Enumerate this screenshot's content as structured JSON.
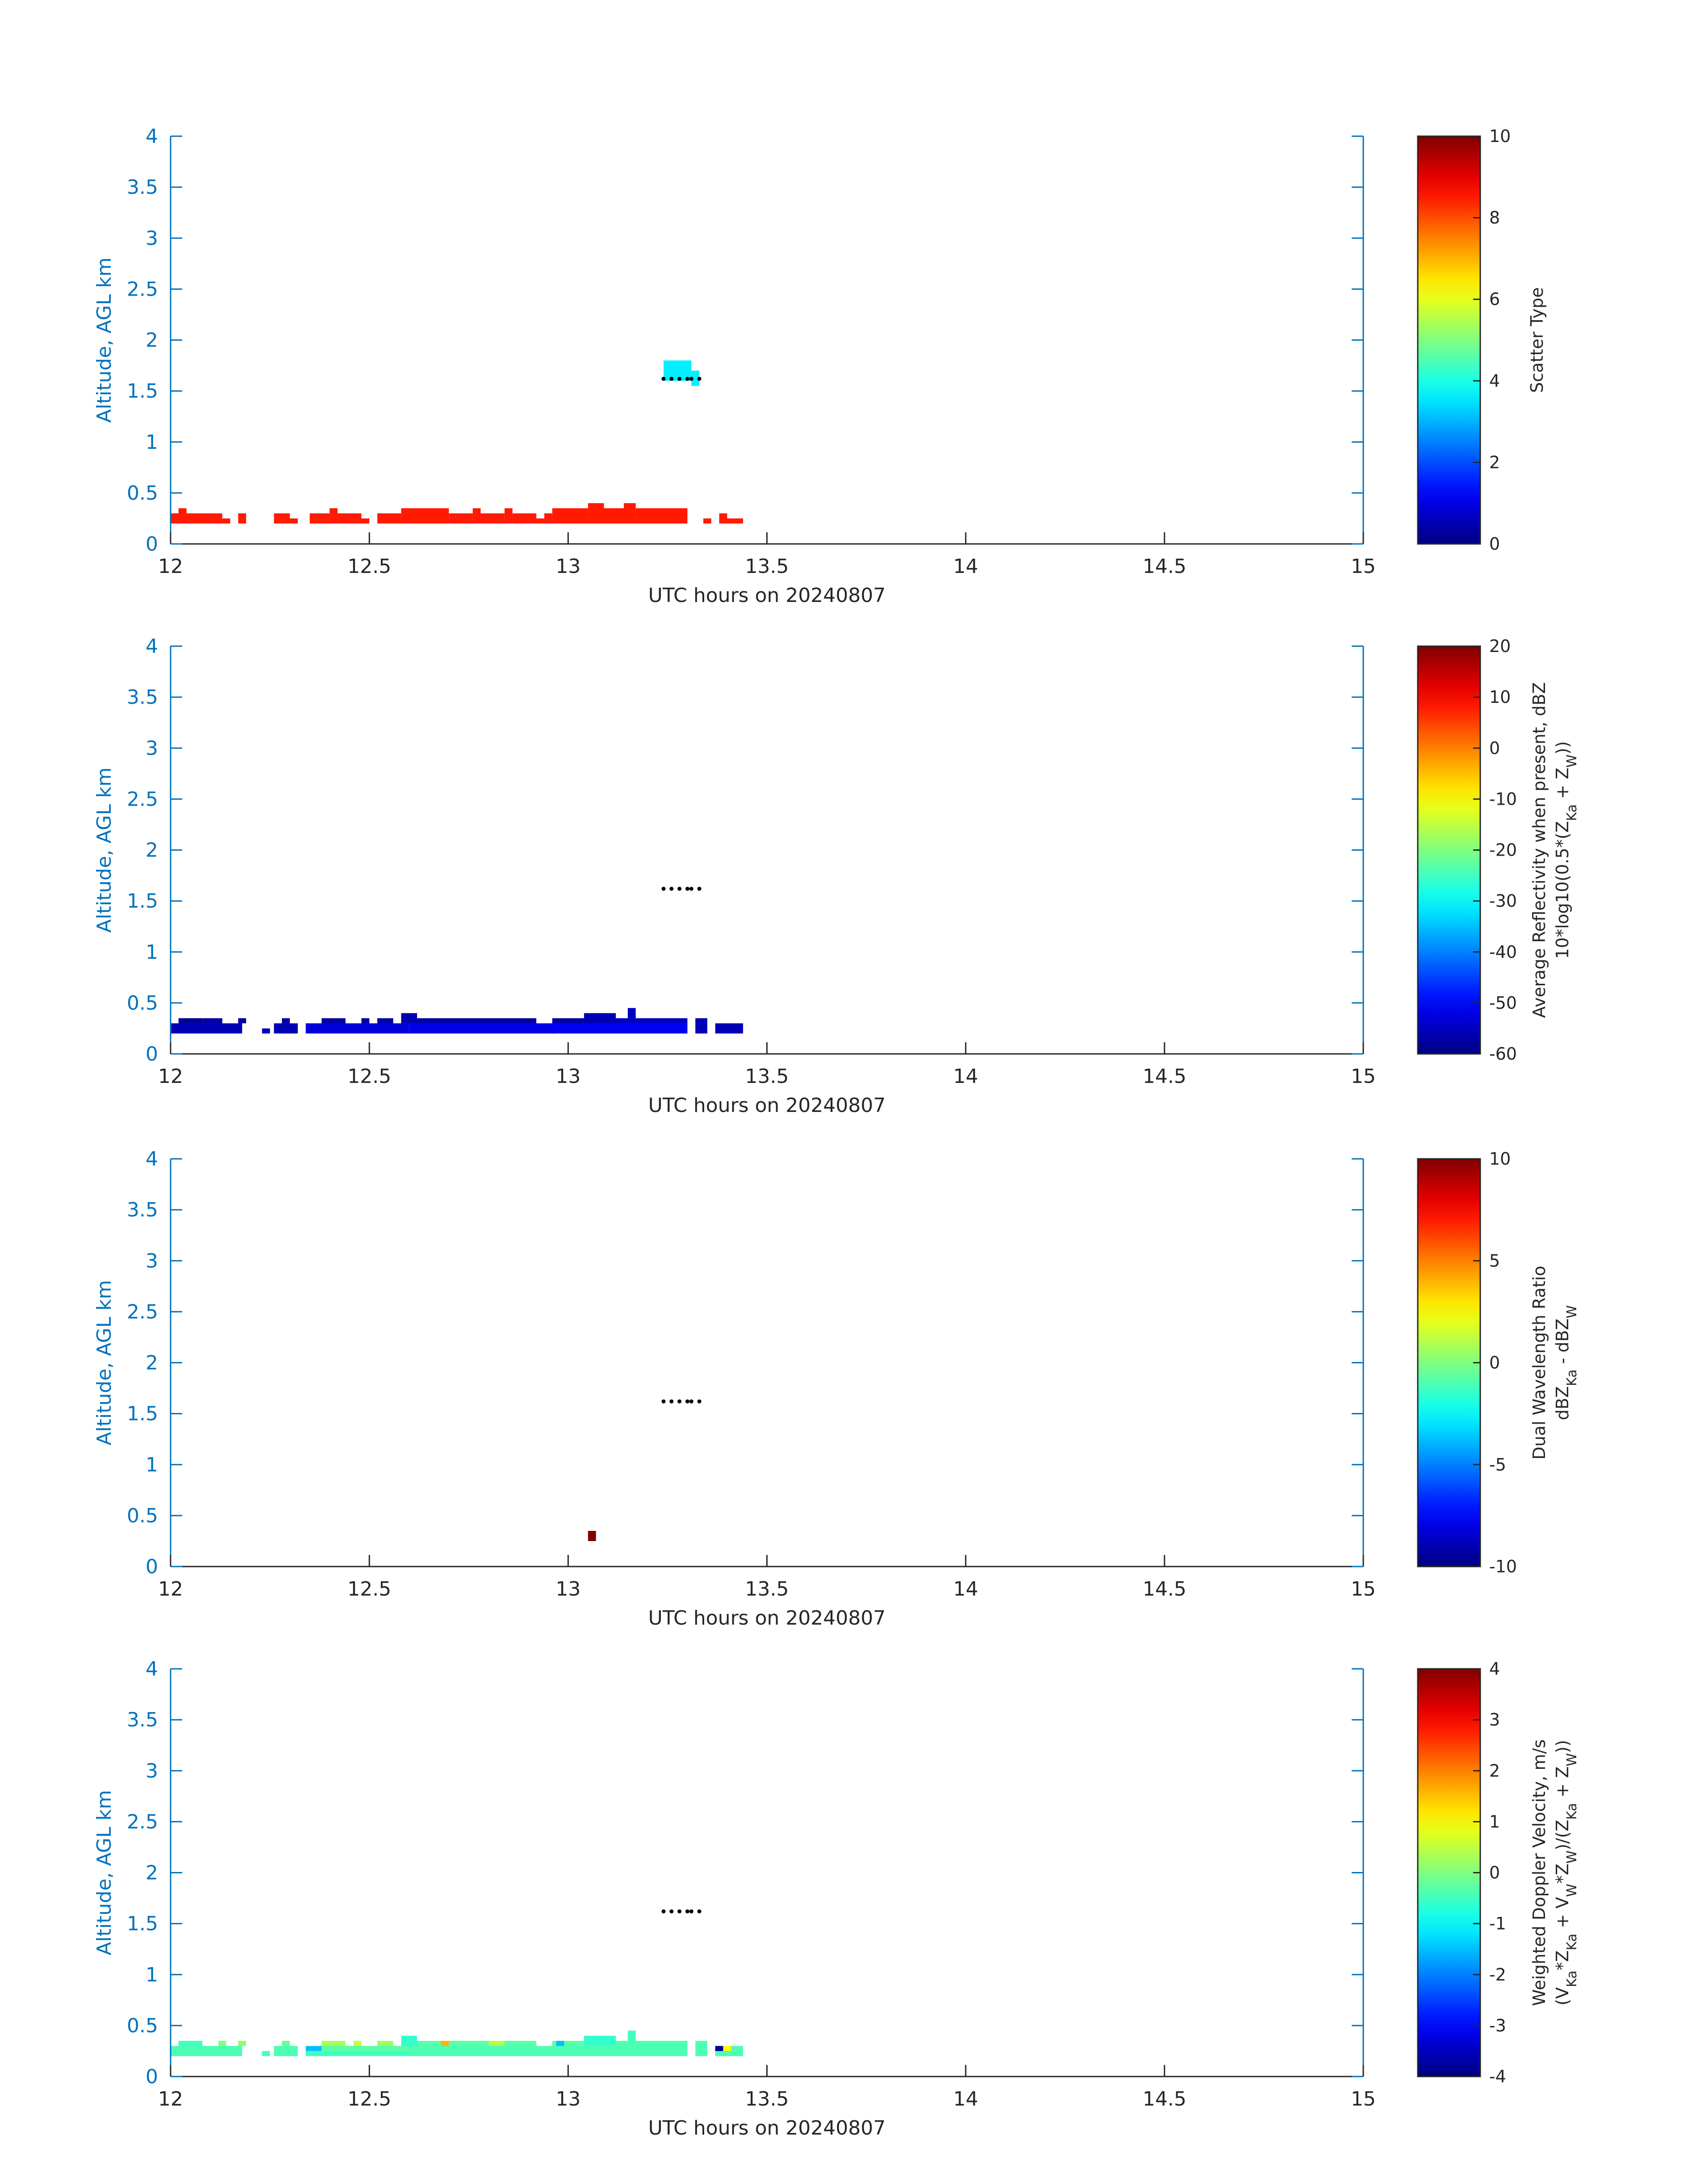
{
  "chart_data": [
    {
      "type": "heatmap",
      "xlabel": "UTC hours on 20240807",
      "ylabel": "Altitude, AGL km",
      "xlim": [
        12,
        15
      ],
      "ylim": [
        0,
        4
      ],
      "xticks": [
        "12",
        "12.5",
        "13",
        "13.5",
        "14",
        "14.5",
        "15"
      ],
      "yticks": [
        "0",
        "0.5",
        "1",
        "1.5",
        "2",
        "2.5",
        "3",
        "3.5",
        "4"
      ],
      "colorbar": {
        "label_lines": [
          "Scatter Type"
        ],
        "ticks": [
          "0",
          "2",
          "4",
          "6",
          "8",
          "10"
        ],
        "range": [
          0,
          10
        ],
        "colormap": "jet"
      },
      "cells": [
        {
          "x0": 12.0,
          "x1": 12.13,
          "y0": 0.2,
          "y1": 0.3,
          "value": 8.5
        },
        {
          "x0": 12.02,
          "x1": 12.04,
          "y0": 0.3,
          "y1": 0.35,
          "value": 8.5
        },
        {
          "x0": 12.13,
          "x1": 12.15,
          "y0": 0.2,
          "y1": 0.25,
          "value": 8.5
        },
        {
          "x0": 12.17,
          "x1": 12.19,
          "y0": 0.2,
          "y1": 0.3,
          "value": 8.5
        },
        {
          "x0": 12.26,
          "x1": 12.3,
          "y0": 0.2,
          "y1": 0.3,
          "value": 8.5
        },
        {
          "x0": 12.3,
          "x1": 12.32,
          "y0": 0.2,
          "y1": 0.25,
          "value": 8.5
        },
        {
          "x0": 12.35,
          "x1": 12.4,
          "y0": 0.2,
          "y1": 0.3,
          "value": 8.5
        },
        {
          "x0": 12.4,
          "x1": 12.42,
          "y0": 0.2,
          "y1": 0.35,
          "value": 8.5
        },
        {
          "x0": 12.42,
          "x1": 12.48,
          "y0": 0.2,
          "y1": 0.3,
          "value": 8.5
        },
        {
          "x0": 12.48,
          "x1": 12.5,
          "y0": 0.2,
          "y1": 0.25,
          "value": 8.5
        },
        {
          "x0": 12.52,
          "x1": 12.58,
          "y0": 0.2,
          "y1": 0.3,
          "value": 8.5
        },
        {
          "x0": 12.58,
          "x1": 12.7,
          "y0": 0.2,
          "y1": 0.35,
          "value": 8.5
        },
        {
          "x0": 12.7,
          "x1": 12.76,
          "y0": 0.2,
          "y1": 0.3,
          "value": 8.5
        },
        {
          "x0": 12.76,
          "x1": 12.78,
          "y0": 0.2,
          "y1": 0.35,
          "value": 8.5
        },
        {
          "x0": 12.78,
          "x1": 12.84,
          "y0": 0.2,
          "y1": 0.3,
          "value": 8.5
        },
        {
          "x0": 12.84,
          "x1": 12.86,
          "y0": 0.2,
          "y1": 0.35,
          "value": 8.5
        },
        {
          "x0": 12.86,
          "x1": 12.92,
          "y0": 0.2,
          "y1": 0.3,
          "value": 8.5
        },
        {
          "x0": 12.92,
          "x1": 12.94,
          "y0": 0.2,
          "y1": 0.25,
          "value": 8.5
        },
        {
          "x0": 12.94,
          "x1": 12.96,
          "y0": 0.2,
          "y1": 0.3,
          "value": 8.5
        },
        {
          "x0": 12.96,
          "x1": 13.05,
          "y0": 0.2,
          "y1": 0.35,
          "value": 8.5
        },
        {
          "x0": 13.05,
          "x1": 13.09,
          "y0": 0.2,
          "y1": 0.4,
          "value": 8.5
        },
        {
          "x0": 13.09,
          "x1": 13.14,
          "y0": 0.2,
          "y1": 0.35,
          "value": 8.5
        },
        {
          "x0": 13.14,
          "x1": 13.17,
          "y0": 0.2,
          "y1": 0.4,
          "value": 8.5
        },
        {
          "x0": 13.17,
          "x1": 13.3,
          "y0": 0.2,
          "y1": 0.35,
          "value": 8.5
        },
        {
          "x0": 13.34,
          "x1": 13.36,
          "y0": 0.2,
          "y1": 0.25,
          "value": 8.5
        },
        {
          "x0": 13.38,
          "x1": 13.4,
          "y0": 0.2,
          "y1": 0.3,
          "value": 8.5
        },
        {
          "x0": 13.4,
          "x1": 13.44,
          "y0": 0.2,
          "y1": 0.25,
          "value": 8.5
        },
        {
          "x0": 13.24,
          "x1": 13.31,
          "y0": 1.6,
          "y1": 1.8,
          "value": 3.6
        },
        {
          "x0": 13.31,
          "x1": 13.33,
          "y0": 1.55,
          "y1": 1.7,
          "value": 3.6
        }
      ],
      "markers": {
        "x": [
          13.24,
          13.26,
          13.28,
          13.3,
          13.31,
          13.33
        ],
        "y": [
          1.62,
          1.62,
          1.62,
          1.62,
          1.62,
          1.62
        ]
      }
    },
    {
      "type": "heatmap",
      "xlabel": "UTC hours on 20240807",
      "ylabel": "Altitude, AGL km",
      "xlim": [
        12,
        15
      ],
      "ylim": [
        0,
        4
      ],
      "xticks": [
        "12",
        "12.5",
        "13",
        "13.5",
        "14",
        "14.5",
        "15"
      ],
      "yticks": [
        "0",
        "0.5",
        "1",
        "1.5",
        "2",
        "2.5",
        "3",
        "3.5",
        "4"
      ],
      "colorbar": {
        "label_lines": [
          "Average Reflectivity when present, dBZ",
          "10*log10(0.5*(Z_Ka + Z_W))"
        ],
        "ticks": [
          "-60",
          "-50",
          "-40",
          "-30",
          "-20",
          "-10",
          "0",
          "10",
          "20"
        ],
        "range": [
          -60,
          20
        ],
        "colormap": "jet"
      },
      "cells": [
        {
          "x0": 12.0,
          "x1": 12.18,
          "y0": 0.2,
          "y1": 0.3,
          "value": -56
        },
        {
          "x0": 12.02,
          "x1": 12.08,
          "y0": 0.3,
          "y1": 0.35,
          "value": -58
        },
        {
          "x0": 12.08,
          "x1": 12.13,
          "y0": 0.3,
          "y1": 0.35,
          "value": -57
        },
        {
          "x0": 12.17,
          "x1": 12.19,
          "y0": 0.3,
          "y1": 0.35,
          "value": -57
        },
        {
          "x0": 12.23,
          "x1": 12.25,
          "y0": 0.2,
          "y1": 0.25,
          "value": -55
        },
        {
          "x0": 12.26,
          "x1": 12.32,
          "y0": 0.2,
          "y1": 0.3,
          "value": -56
        },
        {
          "x0": 12.28,
          "x1": 12.3,
          "y0": 0.3,
          "y1": 0.35,
          "value": -57
        },
        {
          "x0": 12.34,
          "x1": 12.6,
          "y0": 0.2,
          "y1": 0.3,
          "value": -53
        },
        {
          "x0": 12.38,
          "x1": 12.44,
          "y0": 0.3,
          "y1": 0.35,
          "value": -57
        },
        {
          "x0": 12.48,
          "x1": 12.5,
          "y0": 0.3,
          "y1": 0.35,
          "value": -57
        },
        {
          "x0": 12.52,
          "x1": 12.56,
          "y0": 0.3,
          "y1": 0.35,
          "value": -57
        },
        {
          "x0": 12.6,
          "x1": 12.97,
          "y0": 0.2,
          "y1": 0.3,
          "value": -52
        },
        {
          "x0": 12.58,
          "x1": 12.62,
          "y0": 0.3,
          "y1": 0.4,
          "value": -56
        },
        {
          "x0": 12.62,
          "x1": 12.92,
          "y0": 0.3,
          "y1": 0.35,
          "value": -57
        },
        {
          "x0": 12.96,
          "x1": 13.3,
          "y0": 0.2,
          "y1": 0.3,
          "value": -51
        },
        {
          "x0": 12.96,
          "x1": 13.04,
          "y0": 0.3,
          "y1": 0.35,
          "value": -57
        },
        {
          "x0": 13.04,
          "x1": 13.12,
          "y0": 0.3,
          "y1": 0.4,
          "value": -56
        },
        {
          "x0": 13.12,
          "x1": 13.3,
          "y0": 0.3,
          "y1": 0.35,
          "value": -55
        },
        {
          "x0": 13.15,
          "x1": 13.17,
          "y0": 0.35,
          "y1": 0.45,
          "value": -55
        },
        {
          "x0": 13.32,
          "x1": 13.35,
          "y0": 0.2,
          "y1": 0.35,
          "value": -56
        },
        {
          "x0": 13.37,
          "x1": 13.44,
          "y0": 0.2,
          "y1": 0.3,
          "value": -56
        }
      ],
      "markers": {
        "x": [
          13.24,
          13.26,
          13.28,
          13.3,
          13.31,
          13.33
        ],
        "y": [
          1.62,
          1.62,
          1.62,
          1.62,
          1.62,
          1.62
        ]
      }
    },
    {
      "type": "heatmap",
      "xlabel": "UTC hours on 20240807",
      "ylabel": "Altitude, AGL km",
      "xlim": [
        12,
        15
      ],
      "ylim": [
        0,
        4
      ],
      "xticks": [
        "12",
        "12.5",
        "13",
        "13.5",
        "14",
        "14.5",
        "15"
      ],
      "yticks": [
        "0",
        "0.5",
        "1",
        "1.5",
        "2",
        "2.5",
        "3",
        "3.5",
        "4"
      ],
      "colorbar": {
        "label_lines": [
          "Dual Wavelength Ratio",
          "dBZ_Ka - dBZ_W"
        ],
        "ticks": [
          "-10",
          "-5",
          "0",
          "5",
          "10"
        ],
        "range": [
          -10,
          10
        ],
        "colormap": "jet"
      },
      "cells": [
        {
          "x0": 13.05,
          "x1": 13.07,
          "y0": 0.25,
          "y1": 0.35,
          "value": 10
        }
      ],
      "markers": {
        "x": [
          13.24,
          13.26,
          13.28,
          13.3,
          13.31,
          13.33
        ],
        "y": [
          1.62,
          1.62,
          1.62,
          1.62,
          1.62,
          1.62
        ]
      }
    },
    {
      "type": "heatmap",
      "xlabel": "UTC hours on 20240807",
      "ylabel": "Altitude, AGL km",
      "xlim": [
        12,
        15
      ],
      "ylim": [
        0,
        4
      ],
      "xticks": [
        "12",
        "12.5",
        "13",
        "13.5",
        "14",
        "14.5",
        "15"
      ],
      "yticks": [
        "0",
        "0.5",
        "1",
        "1.5",
        "2",
        "2.5",
        "3",
        "3.5",
        "4"
      ],
      "colorbar": {
        "label_lines": [
          "Weighted Doppler Velocity, m/s",
          "(V_Ka*Z_Ka + V_W*Z_W)/(Z_Ka + Z_W))"
        ],
        "ticks": [
          "-4",
          "-3",
          "-2",
          "-1",
          "0",
          "1",
          "2",
          "3",
          "4"
        ],
        "range": [
          -4,
          4
        ],
        "colormap": "jet"
      },
      "cells": [
        {
          "x0": 12.0,
          "x1": 12.18,
          "y0": 0.2,
          "y1": 0.3,
          "value": -0.4
        },
        {
          "x0": 12.02,
          "x1": 12.08,
          "y0": 0.3,
          "y1": 0.35,
          "value": -0.5
        },
        {
          "x0": 12.12,
          "x1": 12.14,
          "y0": 0.3,
          "y1": 0.35,
          "value": 0.0
        },
        {
          "x0": 12.17,
          "x1": 12.19,
          "y0": 0.3,
          "y1": 0.35,
          "value": 0.1
        },
        {
          "x0": 12.23,
          "x1": 12.25,
          "y0": 0.2,
          "y1": 0.25,
          "value": -0.5
        },
        {
          "x0": 12.26,
          "x1": 12.32,
          "y0": 0.2,
          "y1": 0.3,
          "value": -0.4
        },
        {
          "x0": 12.28,
          "x1": 12.3,
          "y0": 0.3,
          "y1": 0.35,
          "value": -0.2
        },
        {
          "x0": 12.34,
          "x1": 12.38,
          "y0": 0.25,
          "y1": 0.3,
          "value": -1.5
        },
        {
          "x0": 12.34,
          "x1": 12.6,
          "y0": 0.2,
          "y1": 0.25,
          "value": -0.5
        },
        {
          "x0": 12.38,
          "x1": 12.6,
          "y0": 0.25,
          "y1": 0.3,
          "value": -0.3
        },
        {
          "x0": 12.38,
          "x1": 12.44,
          "y0": 0.3,
          "y1": 0.35,
          "value": 0.3
        },
        {
          "x0": 12.46,
          "x1": 12.48,
          "y0": 0.3,
          "y1": 0.35,
          "value": 0.5
        },
        {
          "x0": 12.52,
          "x1": 12.56,
          "y0": 0.3,
          "y1": 0.35,
          "value": 0.2
        },
        {
          "x0": 12.6,
          "x1": 12.97,
          "y0": 0.2,
          "y1": 0.3,
          "value": -0.4
        },
        {
          "x0": 12.58,
          "x1": 12.62,
          "y0": 0.3,
          "y1": 0.4,
          "value": -0.6
        },
        {
          "x0": 12.62,
          "x1": 12.92,
          "y0": 0.3,
          "y1": 0.35,
          "value": -0.3
        },
        {
          "x0": 12.68,
          "x1": 12.7,
          "y0": 0.3,
          "y1": 0.35,
          "value": 1.6
        },
        {
          "x0": 12.8,
          "x1": 12.84,
          "y0": 0.3,
          "y1": 0.35,
          "value": 0.4
        },
        {
          "x0": 12.96,
          "x1": 13.3,
          "y0": 0.2,
          "y1": 0.3,
          "value": -0.4
        },
        {
          "x0": 12.96,
          "x1": 13.04,
          "y0": 0.3,
          "y1": 0.35,
          "value": -0.3
        },
        {
          "x0": 12.97,
          "x1": 12.99,
          "y0": 0.3,
          "y1": 0.35,
          "value": -1.5
        },
        {
          "x0": 13.04,
          "x1": 13.12,
          "y0": 0.3,
          "y1": 0.4,
          "value": -0.6
        },
        {
          "x0": 13.12,
          "x1": 13.3,
          "y0": 0.3,
          "y1": 0.35,
          "value": -0.4
        },
        {
          "x0": 13.15,
          "x1": 13.17,
          "y0": 0.35,
          "y1": 0.45,
          "value": -0.5
        },
        {
          "x0": 13.32,
          "x1": 13.35,
          "y0": 0.2,
          "y1": 0.35,
          "value": -0.4
        },
        {
          "x0": 13.37,
          "x1": 13.44,
          "y0": 0.2,
          "y1": 0.3,
          "value": -0.4
        },
        {
          "x0": 13.37,
          "x1": 13.39,
          "y0": 0.25,
          "y1": 0.3,
          "value": -3.8
        },
        {
          "x0": 13.39,
          "x1": 13.41,
          "y0": 0.25,
          "y1": 0.3,
          "value": 1.0
        }
      ],
      "markers": {
        "x": [
          13.24,
          13.26,
          13.28,
          13.3,
          13.31,
          13.33
        ],
        "y": [
          1.62,
          1.62,
          1.62,
          1.62,
          1.62,
          1.62
        ]
      }
    }
  ]
}
